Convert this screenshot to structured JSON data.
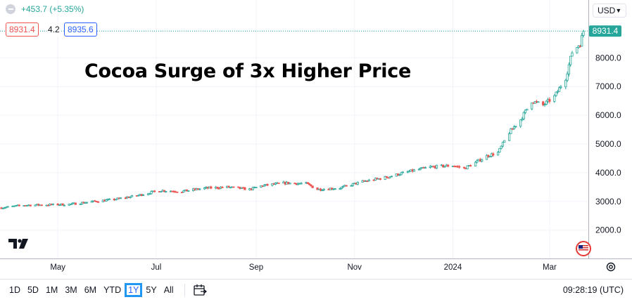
{
  "header": {
    "change": "+453.7 (+5.35%)",
    "bid": "8931.4",
    "spread": "4.2",
    "ask": "8935.6",
    "currency": "USD"
  },
  "annotation": "Cocoa Surge of 3x Higher Price",
  "footer": {
    "ranges": [
      "1D",
      "5D",
      "1M",
      "3M",
      "6M",
      "YTD",
      "1Y",
      "5Y",
      "All"
    ],
    "active_range": "1Y",
    "clock": "09:28:19 (UTC)"
  },
  "colors": {
    "up": "#26a69a",
    "down": "#ef5350",
    "accent": "#2962ff",
    "active_border": "#2196f3"
  },
  "chart_data": {
    "type": "candlestick",
    "title": "",
    "y_ticks": [
      2000,
      3000,
      4000,
      5000,
      6000,
      7000,
      8000
    ],
    "y_tick_labels": [
      "2000.0",
      "3000.0",
      "4000.0",
      "5000.0",
      "6000.0",
      "7000.0",
      "8000.0"
    ],
    "x_tick_labels": [
      "May",
      "Jul",
      "Sep",
      "Nov",
      "2024",
      "Mar"
    ],
    "x_tick_dates": [
      "2023-05-01",
      "2023-07-01",
      "2023-09-01",
      "2023-11-01",
      "2024-01-01",
      "2024-03-01"
    ],
    "last_price": 8931.4,
    "last_price_label": "8931.4",
    "date_range": [
      "2023-03-27",
      "2024-03-22"
    ],
    "series": [
      {
        "values": [
          [
            "2023-03-27",
            2780
          ],
          [
            "2023-04-10",
            2870
          ],
          [
            "2023-04-24",
            2880
          ],
          [
            "2023-05-08",
            2900
          ],
          [
            "2023-05-22",
            2990
          ],
          [
            "2023-06-05",
            3070
          ],
          [
            "2023-06-19",
            3200
          ],
          [
            "2023-07-03",
            3380
          ],
          [
            "2023-07-17",
            3350
          ],
          [
            "2023-07-31",
            3460
          ],
          [
            "2023-08-14",
            3500
          ],
          [
            "2023-08-28",
            3420
          ],
          [
            "2023-09-04",
            3540
          ],
          [
            "2023-09-18",
            3640
          ],
          [
            "2023-10-02",
            3620
          ],
          [
            "2023-10-09",
            3420
          ],
          [
            "2023-10-23",
            3470
          ],
          [
            "2023-11-06",
            3690
          ],
          [
            "2023-11-20",
            3830
          ],
          [
            "2023-12-04",
            4030
          ],
          [
            "2023-12-18",
            4200
          ],
          [
            "2024-01-01",
            4250
          ],
          [
            "2024-01-08",
            4150
          ],
          [
            "2024-01-15",
            4350
          ],
          [
            "2024-01-22",
            4580
          ],
          [
            "2024-01-29",
            4700
          ],
          [
            "2024-02-05",
            5400
          ],
          [
            "2024-02-12",
            5850
          ],
          [
            "2024-02-19",
            6500
          ],
          [
            "2024-02-26",
            6350
          ],
          [
            "2024-03-04",
            6650
          ],
          [
            "2024-03-11",
            7300
          ],
          [
            "2024-03-15",
            8200
          ],
          [
            "2024-03-20",
            8500
          ],
          [
            "2024-03-22",
            8931.4
          ]
        ]
      }
    ]
  }
}
